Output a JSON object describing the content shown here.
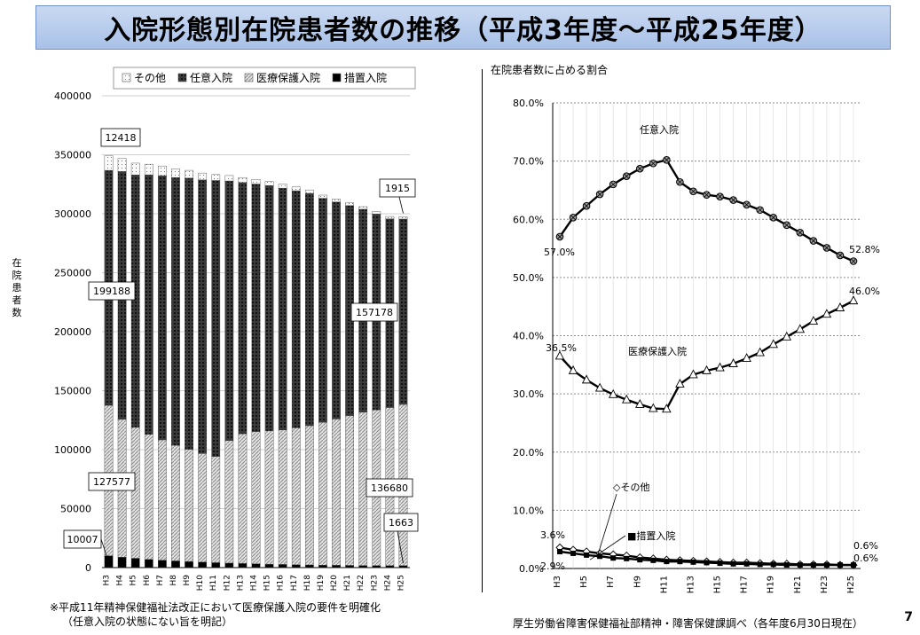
{
  "page": {
    "title": "入院形態別在院患者数の推移（平成3年度～平成25年度）",
    "note_line1": "※平成11年精神保健福祉法改正において医療保護入院の要件を明確化",
    "note_line2": "（任意入院の状態にない旨を明記）",
    "source": "厚生労働省障害保健福祉部精神・障害保健課調べ（各年度6月30日現在）",
    "page_number": "7"
  },
  "colors": {
    "title_bg": "#b7cbeb",
    "bar_voluntary": "#1e1e1e",
    "bar_medical": "#cfcfcf",
    "bar_measures": "#000000",
    "bar_other": "#f5f5f5"
  },
  "chart_data": [
    {
      "type": "bar",
      "stacked": true,
      "ylabel": "在院患者数",
      "ylim": [
        0,
        400000
      ],
      "yticks": [
        "0",
        "50000",
        "100000",
        "150000",
        "200000",
        "250000",
        "300000",
        "350000",
        "400000"
      ],
      "categories": [
        "H3",
        "H4",
        "H5",
        "H6",
        "H7",
        "H8",
        "H9",
        "H10",
        "H11",
        "H12",
        "H13",
        "H14",
        "H15",
        "H16",
        "H17",
        "H18",
        "H19",
        "H20",
        "H21",
        "H22",
        "H23",
        "H24",
        "H25"
      ],
      "legend": [
        "その他",
        "任意入院",
        "医療保護入院",
        "措置入院"
      ],
      "series": [
        {
          "name": "措置入院",
          "values": [
            10007,
            8800,
            7900,
            7000,
            6300,
            5700,
            5200,
            4700,
            4200,
            3800,
            3500,
            3200,
            2900,
            2700,
            2500,
            2300,
            2100,
            2000,
            1900,
            1800,
            1750,
            1700,
            1663
          ]
        },
        {
          "name": "医療保護入院",
          "values": [
            127577,
            117000,
            111000,
            106000,
            102000,
            98000,
            95000,
            92000,
            90000,
            104000,
            110000,
            112000,
            113000,
            114000,
            116000,
            118000,
            121000,
            124000,
            127000,
            130000,
            132000,
            134000,
            136680
          ]
        },
        {
          "name": "任意入院",
          "values": [
            199188,
            210000,
            214000,
            220000,
            224000,
            227000,
            230000,
            232000,
            234000,
            220000,
            213000,
            210000,
            208000,
            205000,
            201000,
            197000,
            190000,
            184000,
            178000,
            172000,
            166000,
            160000,
            157178
          ]
        },
        {
          "name": "その他",
          "values": [
            12418,
            11000,
            10000,
            9000,
            8200,
            7400,
            6600,
            5800,
            5000,
            4600,
            4200,
            3900,
            3600,
            3400,
            3200,
            2900,
            2700,
            2500,
            2300,
            2200,
            2100,
            2000,
            1915
          ]
        }
      ],
      "data_labels": [
        "12418",
        "199188",
        "127577",
        "10007",
        "1915",
        "157178",
        "136680",
        "1663"
      ]
    },
    {
      "type": "line",
      "title": "在院患者数に占める割合",
      "ylim": [
        0,
        80
      ],
      "yticks": [
        "0.0%",
        "10.0%",
        "20.0%",
        "30.0%",
        "40.0%",
        "50.0%",
        "60.0%",
        "70.0%",
        "80.0%"
      ],
      "categories": [
        "H3",
        "H4",
        "H5",
        "H6",
        "H7",
        "H8",
        "H9",
        "H10",
        "H11",
        "H12",
        "H13",
        "H14",
        "H15",
        "H16",
        "H17",
        "H18",
        "H19",
        "H20",
        "H21",
        "H22",
        "H23",
        "H24",
        "H25"
      ],
      "xtick_labels": [
        "H3",
        "H5",
        "H7",
        "H9",
        "H11",
        "H13",
        "H15",
        "H17",
        "H19",
        "H21",
        "H23",
        "H25"
      ],
      "series": [
        {
          "name": "任意入院",
          "values": [
            57.0,
            60.3,
            62.3,
            64.3,
            66.0,
            67.4,
            68.7,
            69.6,
            70.2,
            66.4,
            64.8,
            64.2,
            63.9,
            63.3,
            62.5,
            61.6,
            60.3,
            59.0,
            57.7,
            56.3,
            55.1,
            53.8,
            52.8
          ]
        },
        {
          "name": "医療保護入院",
          "values": [
            36.5,
            34.0,
            32.4,
            31.0,
            29.9,
            29.0,
            28.2,
            27.5,
            27.4,
            31.7,
            33.3,
            34.0,
            34.5,
            35.2,
            36.1,
            37.1,
            38.5,
            39.8,
            41.1,
            42.5,
            43.7,
            44.8,
            46.0
          ]
        },
        {
          "name": "その他",
          "values": [
            3.6,
            3.2,
            2.9,
            2.6,
            2.4,
            2.2,
            1.9,
            1.7,
            1.5,
            1.4,
            1.3,
            1.2,
            1.1,
            1.0,
            1.0,
            0.9,
            0.8,
            0.8,
            0.7,
            0.7,
            0.7,
            0.6,
            0.6
          ]
        },
        {
          "name": "措置入院",
          "values": [
            2.9,
            2.6,
            2.3,
            2.1,
            1.8,
            1.7,
            1.5,
            1.4,
            1.2,
            1.2,
            1.1,
            1.0,
            0.9,
            0.8,
            0.8,
            0.7,
            0.7,
            0.6,
            0.6,
            0.6,
            0.6,
            0.6,
            0.6
          ]
        }
      ],
      "labels": {
        "voluntary": "任意入院",
        "medical": "医療保護入院",
        "other": "◇その他",
        "measures": "■措置入院",
        "v_start": "57.0%",
        "v_end": "52.8%",
        "m_start": "36.5%",
        "m_end": "46.0%",
        "o_start": "3.6%",
        "me_start": "2.9%",
        "o_end": "0.6%",
        "me_end": "0.6%"
      }
    }
  ]
}
